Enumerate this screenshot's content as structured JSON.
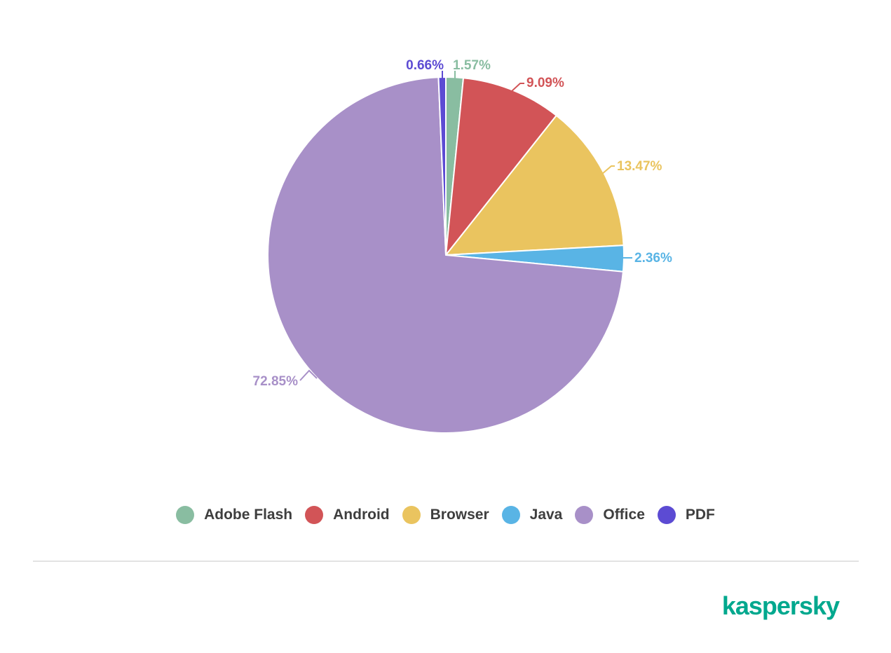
{
  "chart_data": {
    "type": "pie",
    "title": "",
    "unit": "%",
    "direction": "clockwise",
    "start_angle_deg": 0,
    "legend_position": "bottom",
    "slices": [
      {
        "label": "Adobe Flash",
        "value": 1.57,
        "display": "1.57%",
        "color": "#89bda1"
      },
      {
        "label": "Android",
        "value": 9.09,
        "display": "9.09%",
        "color": "#d25457"
      },
      {
        "label": "Browser",
        "value": 13.47,
        "display": "13.47%",
        "color": "#eac45f"
      },
      {
        "label": "Java",
        "value": 2.36,
        "display": "2.36%",
        "color": "#59b4e5"
      },
      {
        "label": "Office",
        "value": 72.85,
        "display": "72.85%",
        "color": "#a890c8"
      },
      {
        "label": "PDF",
        "value": 0.66,
        "display": "0.66%",
        "color": "#5c4bd3"
      }
    ]
  },
  "legend": {
    "items": [
      "Adobe Flash",
      "Android",
      "Browser",
      "Java",
      "Office",
      "PDF"
    ]
  },
  "footer": {
    "logo_text": "kaspersky",
    "logo_color": "#00a88e",
    "divider_color": "#e3e3e3"
  }
}
